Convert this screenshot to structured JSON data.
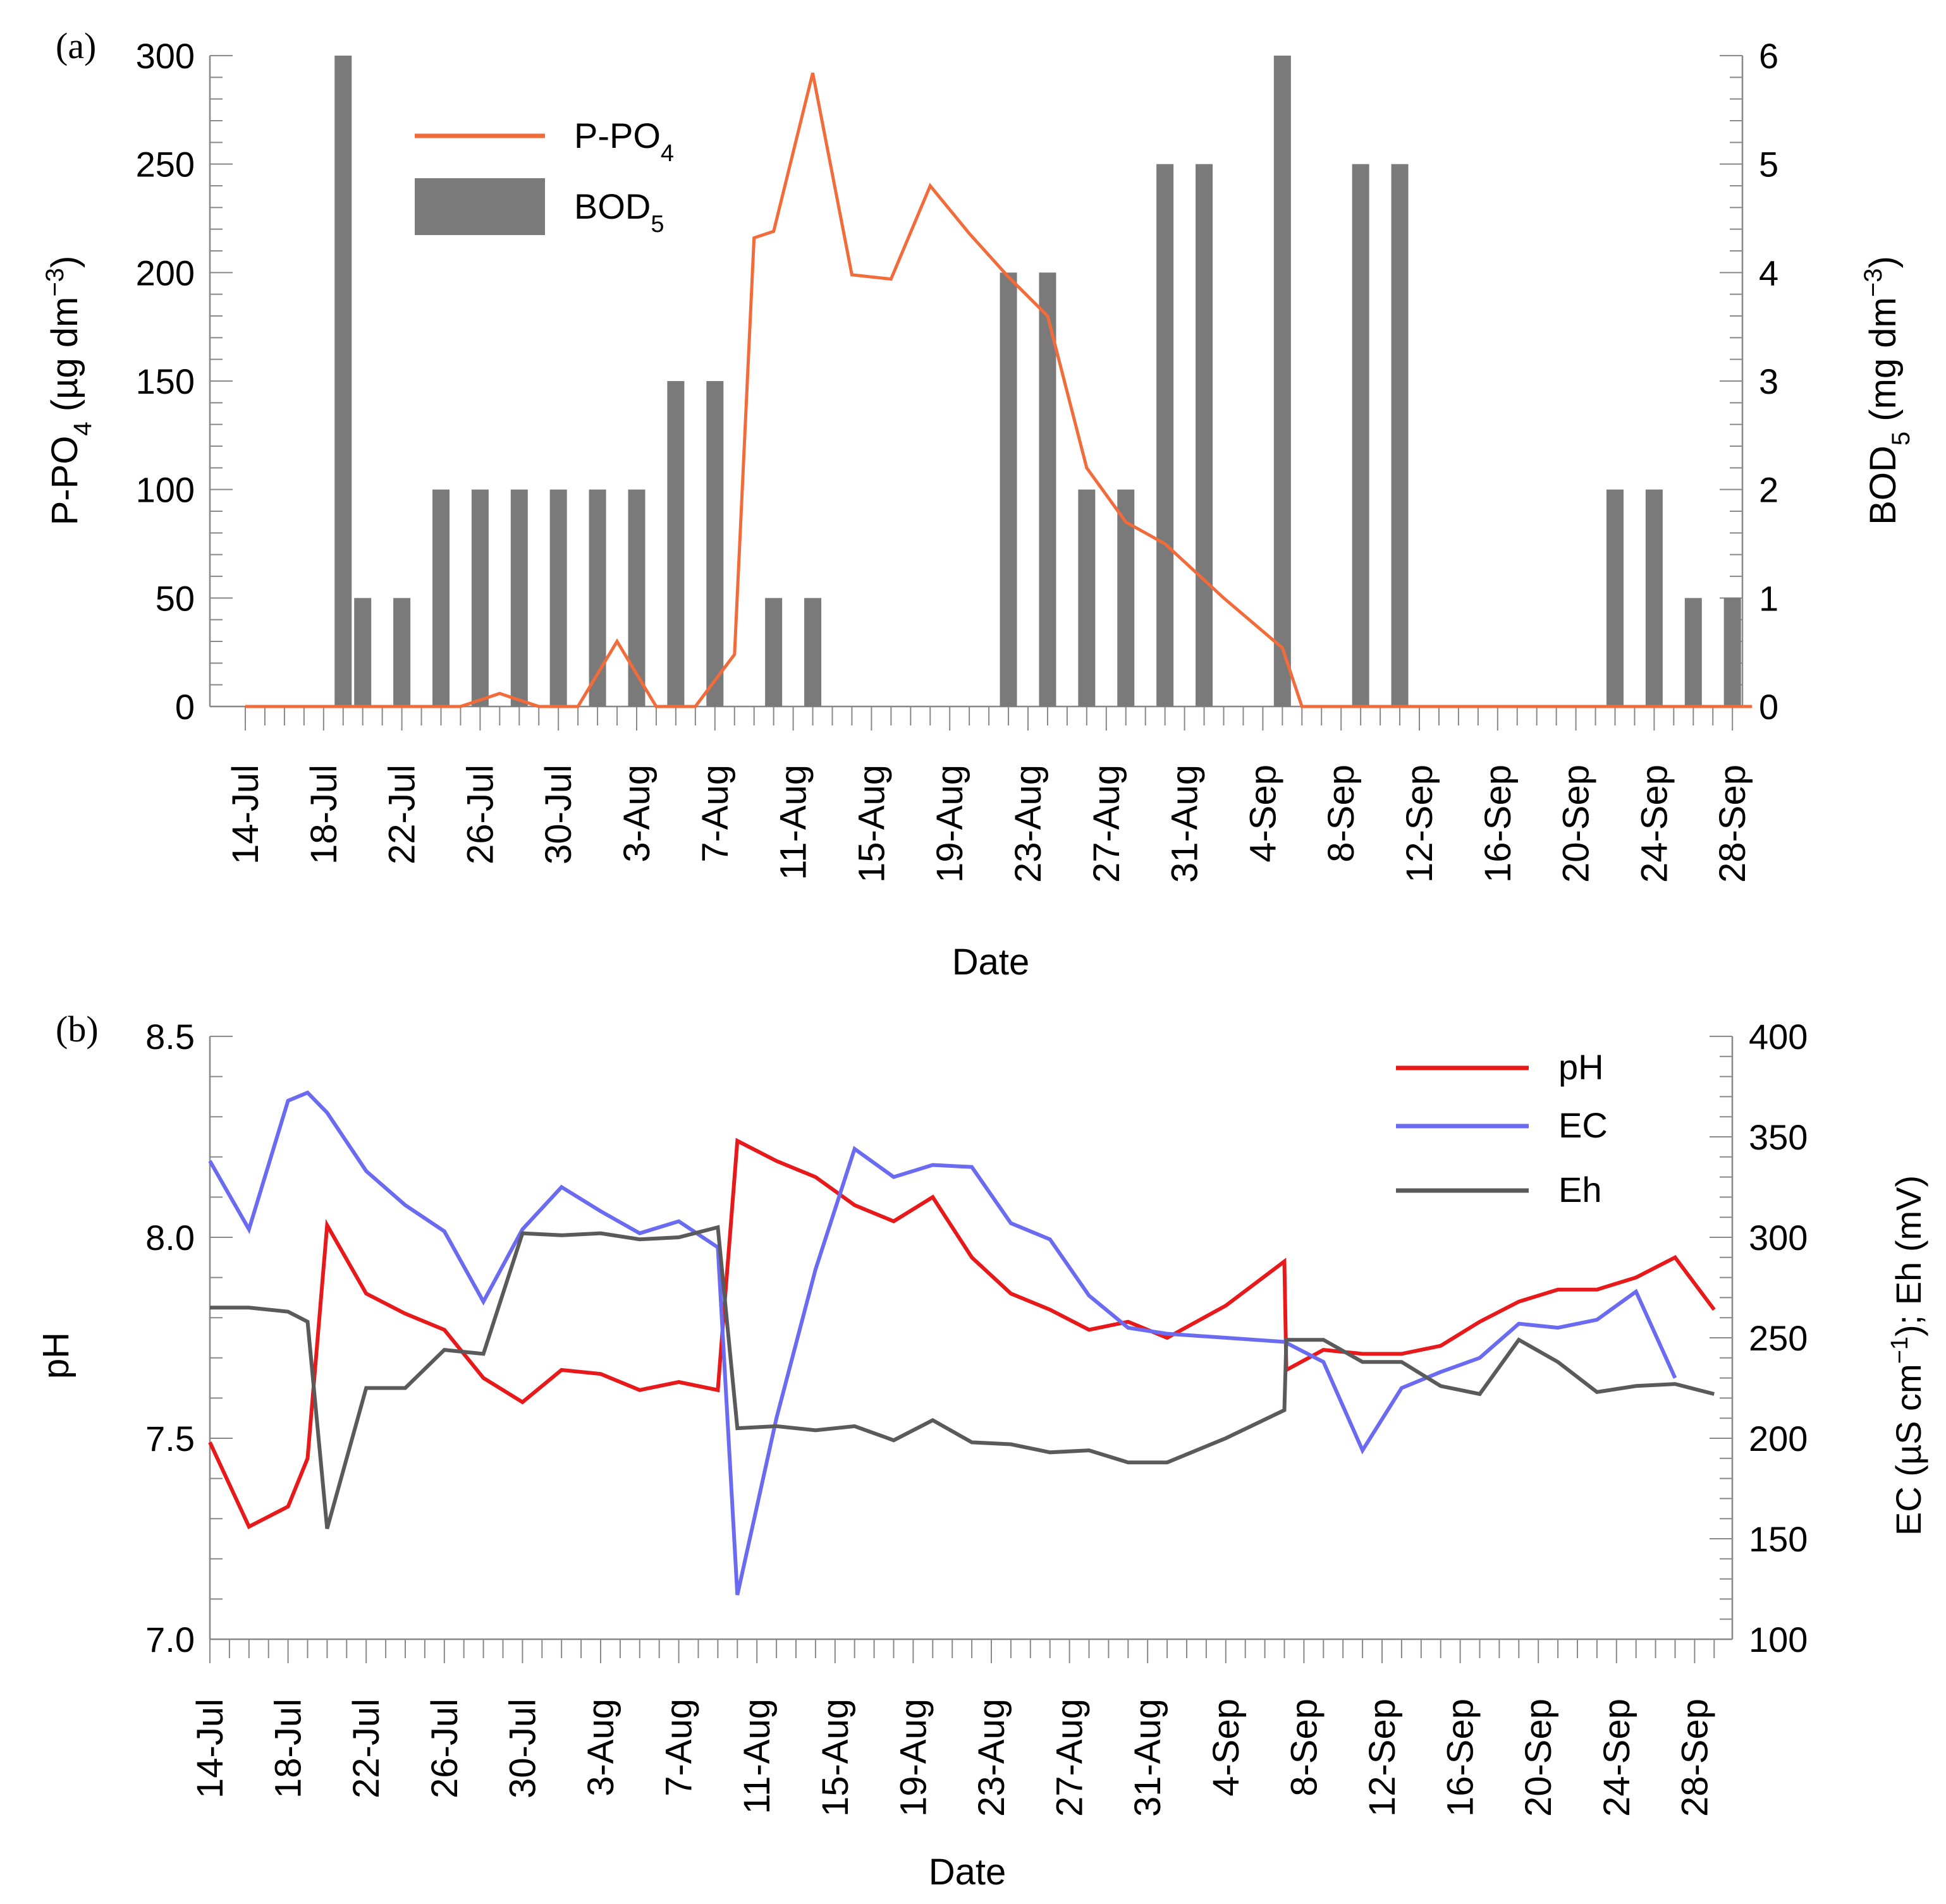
{
  "chart_data": [
    {
      "panel_label": "(a)",
      "type": "bar+line",
      "xlabel": "Date",
      "x_tick_labels": [
        "14-Jul",
        "18-Jul",
        "22-Jul",
        "26-Jul",
        "30-Jul",
        "3-Aug",
        "7-Aug",
        "11-Aug",
        "15-Aug",
        "19-Aug",
        "23-Aug",
        "27-Aug",
        "31-Aug",
        "4-Sep",
        "8-Sep",
        "12-Sep",
        "16-Sep",
        "20-Sep",
        "24-Sep",
        "28-Sep"
      ],
      "y_left": {
        "label_main": "P-PO",
        "label_sub": "4",
        "label_unit": " (µg dm",
        "label_sup": "−3",
        "label_end": ")",
        "lim": [
          0,
          300
        ],
        "ticks": [
          "0",
          "50",
          "100",
          "150",
          "200",
          "250",
          "300"
        ]
      },
      "y_right": {
        "label_main": "BOD",
        "label_sub": "5",
        "label_unit": " (mg dm",
        "label_sup": "−3",
        "label_end": ")",
        "lim": [
          0,
          6
        ],
        "ticks": [
          "0",
          "1",
          "2",
          "3",
          "4",
          "5",
          "6"
        ]
      },
      "legend": {
        "placement": "top-left",
        "line_main": "P-PO",
        "line_sub": "4",
        "bar_main": "BOD",
        "bar_sub": "5"
      },
      "colors": {
        "line": "#f26b3a",
        "bars": "#7a7a7a"
      },
      "series": [
        {
          "name": "P-PO4",
          "axis": "left",
          "type": "line",
          "points": [
            [
              14,
              0
            ],
            [
              18,
              0
            ],
            [
              20,
              0
            ],
            [
              22,
              0
            ],
            [
              25,
              0
            ],
            [
              27,
              6
            ],
            [
              29,
              0
            ],
            [
              31,
              0
            ],
            [
              33,
              30
            ],
            [
              35,
              0
            ],
            [
              37,
              0
            ],
            [
              39,
              24
            ],
            [
              40,
              216
            ],
            [
              41,
              219
            ],
            [
              43,
              292
            ],
            [
              45,
              199
            ],
            [
              47,
              197
            ],
            [
              49,
              240
            ],
            [
              51,
              218
            ],
            [
              53,
              198
            ],
            [
              55,
              180
            ],
            [
              57,
              110
            ],
            [
              59,
              85
            ],
            [
              61,
              75
            ],
            [
              64,
              50
            ],
            [
              67,
              27
            ],
            [
              68,
              0
            ],
            [
              76,
              0
            ],
            [
              81,
              0
            ],
            [
              86,
              0
            ],
            [
              91,
              0
            ]
          ]
        },
        {
          "name": "BOD5",
          "axis": "right",
          "type": "bar",
          "points": [
            [
              19,
              6
            ],
            [
              20,
              1
            ],
            [
              22,
              1
            ],
            [
              24,
              2
            ],
            [
              26,
              2
            ],
            [
              28,
              2
            ],
            [
              30,
              2
            ],
            [
              32,
              2
            ],
            [
              34,
              2
            ],
            [
              36,
              3
            ],
            [
              38,
              3
            ],
            [
              41,
              1
            ],
            [
              43,
              1
            ],
            [
              53,
              4
            ],
            [
              55,
              4
            ],
            [
              57,
              2
            ],
            [
              59,
              2
            ],
            [
              61,
              5
            ],
            [
              63,
              5
            ],
            [
              67,
              6
            ],
            [
              71,
              5
            ],
            [
              73,
              5
            ],
            [
              84,
              2
            ],
            [
              86,
              2
            ],
            [
              88,
              1
            ],
            [
              90,
              1
            ]
          ]
        }
      ]
    },
    {
      "panel_label": "(b)",
      "type": "line",
      "xlabel": "Date",
      "x_tick_labels": [
        "14-Jul",
        "18-Jul",
        "22-Jul",
        "26-Jul",
        "30-Jul",
        "3-Aug",
        "7-Aug",
        "11-Aug",
        "15-Aug",
        "19-Aug",
        "23-Aug",
        "27-Aug",
        "31-Aug",
        "4-Sep",
        "8-Sep",
        "12-Sep",
        "16-Sep",
        "20-Sep",
        "24-Sep",
        "28-Sep"
      ],
      "y_left": {
        "label": "pH",
        "lim": [
          7.0,
          8.5
        ],
        "ticks": [
          "7.0",
          "7.5",
          "8.0",
          "8.5"
        ]
      },
      "y_right": {
        "label_a": "EC (µS cm",
        "label_sup": "−1",
        "label_b": "); Eh (mV)",
        "lim": [
          100,
          400
        ],
        "ticks": [
          "100",
          "150",
          "200",
          "250",
          "300",
          "350",
          "400"
        ]
      },
      "legend": {
        "placement": "top-right",
        "items": [
          "pH",
          "EC",
          "Eh"
        ]
      },
      "colors": {
        "pH": "#e8191a",
        "EC": "#6b6bf2",
        "Eh": "#5a5a5a"
      },
      "series": [
        {
          "name": "pH",
          "axis": "left",
          "points": [
            [
              14,
              7.49
            ],
            [
              16,
              7.28
            ],
            [
              18,
              7.33
            ],
            [
              19,
              7.45
            ],
            [
              20,
              8.03
            ],
            [
              22,
              7.86
            ],
            [
              24,
              7.81
            ],
            [
              26,
              7.77
            ],
            [
              28,
              7.65
            ],
            [
              30,
              7.59
            ],
            [
              32,
              7.67
            ],
            [
              34,
              7.66
            ],
            [
              36,
              7.62
            ],
            [
              38,
              7.64
            ],
            [
              40,
              7.62
            ],
            [
              41,
              8.24
            ],
            [
              43,
              8.19
            ],
            [
              45,
              8.15
            ],
            [
              47,
              8.08
            ],
            [
              49,
              8.04
            ],
            [
              51,
              8.1
            ],
            [
              53,
              7.95
            ],
            [
              55,
              7.86
            ],
            [
              57,
              7.82
            ],
            [
              59,
              7.77
            ],
            [
              61,
              7.79
            ],
            [
              63,
              7.75
            ],
            [
              66,
              7.83
            ],
            [
              69,
              7.94
            ],
            [
              69.1,
              7.67
            ],
            [
              71,
              7.72
            ],
            [
              73,
              7.71
            ],
            [
              75,
              7.71
            ],
            [
              77,
              7.73
            ],
            [
              79,
              7.79
            ],
            [
              81,
              7.84
            ],
            [
              83,
              7.87
            ],
            [
              85,
              7.87
            ],
            [
              87,
              7.9
            ],
            [
              89,
              7.95
            ],
            [
              91,
              7.82
            ]
          ]
        },
        {
          "name": "EC",
          "axis": "right",
          "points": [
            [
              14,
              338
            ],
            [
              16,
              304
            ],
            [
              18,
              368
            ],
            [
              19,
              372
            ],
            [
              20,
              362
            ],
            [
              22,
              333
            ],
            [
              24,
              316
            ],
            [
              26,
              303
            ],
            [
              28,
              268
            ],
            [
              30,
              304
            ],
            [
              32,
              325
            ],
            [
              34,
              313
            ],
            [
              36,
              302
            ],
            [
              38,
              308
            ],
            [
              40,
              295
            ],
            [
              41,
              122
            ],
            [
              43,
              210
            ],
            [
              45,
              284
            ],
            [
              47,
              344
            ],
            [
              49,
              330
            ],
            [
              51,
              336
            ],
            [
              53,
              335
            ],
            [
              55,
              307
            ],
            [
              57,
              299
            ],
            [
              59,
              271
            ],
            [
              61,
              255
            ],
            [
              63,
              252
            ],
            [
              69,
              248
            ],
            [
              71,
              238
            ],
            [
              73,
              194
            ],
            [
              75,
              225
            ],
            [
              77,
              233
            ],
            [
              79,
              240
            ],
            [
              81,
              257
            ],
            [
              83,
              255
            ],
            [
              85,
              259
            ],
            [
              87,
              273
            ],
            [
              89,
              230
            ]
          ]
        },
        {
          "name": "Eh",
          "axis": "right",
          "points": [
            [
              14,
              265
            ],
            [
              16,
              265
            ],
            [
              18,
              263
            ],
            [
              19,
              258
            ],
            [
              20,
              155
            ],
            [
              22,
              225
            ],
            [
              24,
              225
            ],
            [
              26,
              244
            ],
            [
              28,
              242
            ],
            [
              30,
              302
            ],
            [
              32,
              301
            ],
            [
              34,
              302
            ],
            [
              36,
              299
            ],
            [
              38,
              300
            ],
            [
              40,
              305
            ],
            [
              41,
              205
            ],
            [
              43,
              206
            ],
            [
              45,
              204
            ],
            [
              47,
              206
            ],
            [
              49,
              199
            ],
            [
              51,
              209
            ],
            [
              53,
              198
            ],
            [
              55,
              197
            ],
            [
              57,
              193
            ],
            [
              59,
              194
            ],
            [
              61,
              188
            ],
            [
              63,
              188
            ],
            [
              66,
              200
            ],
            [
              69,
              214
            ],
            [
              69.1,
              249
            ],
            [
              71,
              249
            ],
            [
              73,
              238
            ],
            [
              75,
              238
            ],
            [
              77,
              226
            ],
            [
              79,
              222
            ],
            [
              81,
              249
            ],
            [
              83,
              238
            ],
            [
              85,
              223
            ],
            [
              87,
              226
            ],
            [
              89,
              227
            ],
            [
              91,
              222
            ]
          ]
        }
      ]
    }
  ]
}
